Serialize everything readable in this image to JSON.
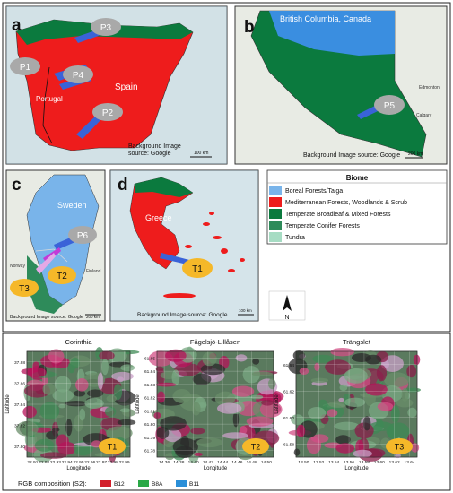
{
  "panels": {
    "a": {
      "letter": "a",
      "country": "Spain",
      "country2": "Portugal",
      "credit": "Background Image source: Google",
      "scale": "100 km",
      "labels": [
        {
          "id": "P1",
          "t": "P1"
        },
        {
          "id": "P2",
          "t": "P2"
        },
        {
          "id": "P3",
          "t": "P3"
        },
        {
          "id": "P4",
          "t": "P4"
        }
      ]
    },
    "b": {
      "letter": "b",
      "region": "British Columbia, Canada",
      "credit": "Background Image source: Google",
      "scale": "200 km",
      "label": "P5",
      "city1": "Edmonton",
      "city2": "Calgary"
    },
    "c": {
      "letter": "c",
      "country": "Sweden",
      "country2": "Finland",
      "country3": "Norway",
      "credit": "Background Image source: Google",
      "scale": "200 km",
      "labels": [
        {
          "id": "P6",
          "t": "P6"
        },
        {
          "id": "T2",
          "t": "T2"
        },
        {
          "id": "T3",
          "t": "T3"
        }
      ]
    },
    "d": {
      "letter": "d",
      "country": "Greece",
      "credit": "Background Image source: Google",
      "scale": "100 km",
      "label": "T1"
    }
  },
  "legend": {
    "title": "Biome",
    "items": [
      {
        "label": "Boreal Forests/Taiga",
        "color": "#79b4ea"
      },
      {
        "label": "Mediterranean Forests, Woodlands & Scrub",
        "color": "#ee1c1c"
      },
      {
        "label": "Temperate Broadleaf & Mixed Forests",
        "color": "#0b7a3e"
      },
      {
        "label": "Temperate Conifer Forests",
        "color": "#2e8b5a"
      },
      {
        "label": "Tundra",
        "color": "#a6dcc3"
      }
    ]
  },
  "north": "N",
  "sat": [
    {
      "title": "Corinthia",
      "xlabel": "Longitude",
      "ylabel": "Latitude",
      "xticks": [
        "22.91",
        "22.92",
        "22.93",
        "22.94",
        "22.95",
        "22.96",
        "22.97",
        "22.98",
        "22.99"
      ],
      "yticks": [
        "37.88",
        "37.86",
        "37.84",
        "37.82",
        "37.80"
      ],
      "badge": "T1"
    },
    {
      "title": "Fågelsjö-Lillåsen",
      "xlabel": "Longitude",
      "ylabel": "Latitude",
      "xticks": [
        "14.36",
        "14.38",
        "14.40",
        "14.42",
        "14.44",
        "14.46",
        "14.48",
        "14.50"
      ],
      "yticks": [
        "61.85",
        "61.84",
        "61.83",
        "61.82",
        "61.81",
        "61.80",
        "61.79",
        "61.78"
      ],
      "badge": "T2"
    },
    {
      "title": "Trängslet",
      "xlabel": "Longitude",
      "ylabel": "Latitude",
      "xticks": [
        "13.50",
        "13.52",
        "13.54",
        "13.56",
        "13.58",
        "13.60",
        "13.62",
        "13.64"
      ],
      "yticks": [
        "61.64",
        "61.62",
        "61.60",
        "61.58"
      ],
      "badge": "T3"
    }
  ],
  "rgb": {
    "label": "RGB composition (S2):",
    "bands": [
      {
        "t": "B12",
        "color": "#d21f2b"
      },
      {
        "t": "B8A",
        "color": "#2aa846"
      },
      {
        "t": "B11",
        "color": "#2b8fd8"
      }
    ]
  }
}
